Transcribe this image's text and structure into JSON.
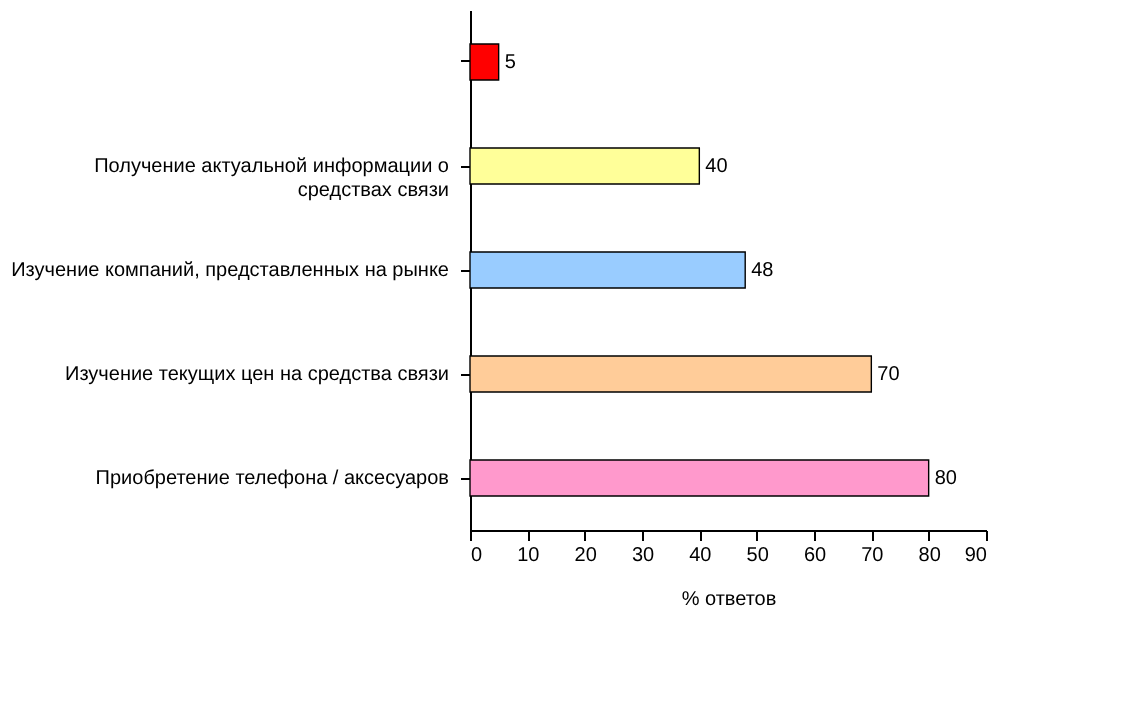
{
  "chart_data": {
    "type": "bar",
    "orientation": "horizontal",
    "xlabel": "% ответов",
    "categories": [
      null,
      "Получение актуальной информации о средствах связи",
      "Изучение компаний, представленных на рынке",
      "Изучение текущих цен на средства связи",
      "Приобретение телефона / аксесуаров"
    ],
    "values": [
      5,
      40,
      48,
      70,
      80
    ],
    "colors": [
      "#ff0000",
      "#ffff99",
      "#99ccff",
      "#ffcc99",
      "#ff99cc"
    ],
    "xlim": [
      0,
      90
    ],
    "xticks": [
      0,
      10,
      20,
      30,
      40,
      50,
      60,
      70,
      80,
      90
    ],
    "data_labels": true,
    "grid": false
  }
}
